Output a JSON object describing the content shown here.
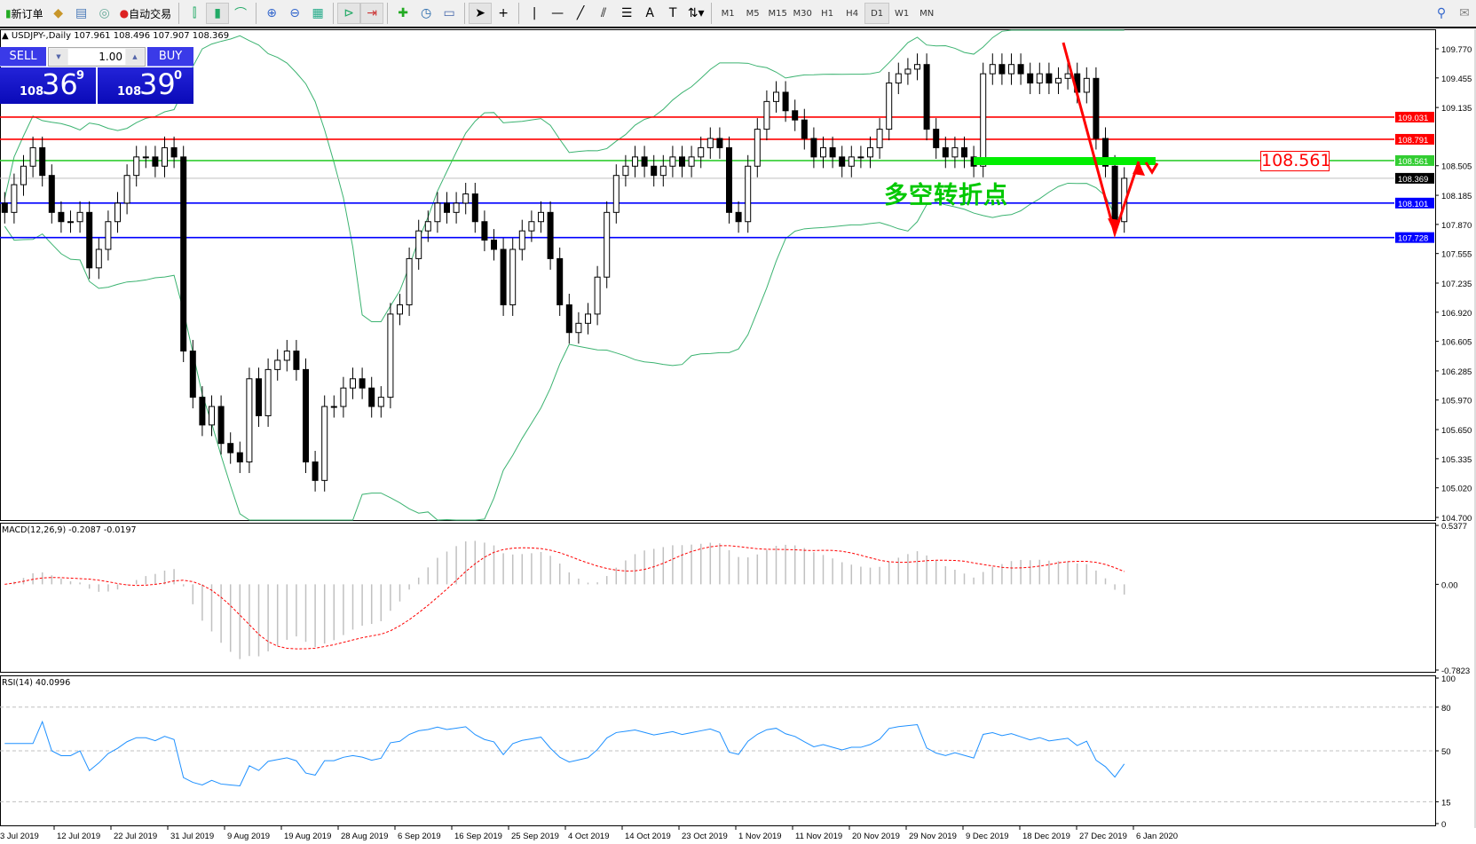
{
  "toolbar": {
    "new_order": "新订单",
    "auto_trading": "自动交易",
    "timeframes": [
      "M1",
      "M5",
      "M15",
      "M30",
      "H1",
      "H4",
      "D1",
      "W1",
      "MN"
    ],
    "active_timeframe": "D1"
  },
  "chart": {
    "title": "USDJPY-,Daily  107.961 108.496 107.907 108.369",
    "annotation": "多空转折点",
    "level_box": "108.561",
    "price_ticks": [
      "109.770",
      "109.455",
      "109.135",
      "108.505",
      "108.185",
      "107.870",
      "107.555",
      "107.235",
      "106.920",
      "106.605",
      "106.285",
      "105.970",
      "105.650",
      "105.335",
      "105.020",
      "104.700"
    ],
    "levels": [
      {
        "label": "109.031",
        "value": 109.031,
        "color": "#ff0000"
      },
      {
        "label": "108.791",
        "value": 108.791,
        "color": "#ff0000"
      },
      {
        "label": "108.561",
        "value": 108.561,
        "color": "#32cd32"
      },
      {
        "label": "108.369",
        "value": 108.369,
        "color": "#000000"
      },
      {
        "label": "108.101",
        "value": 108.101,
        "color": "#0000ff"
      },
      {
        "label": "107.728",
        "value": 107.728,
        "color": "#0000ff"
      }
    ],
    "dates": [
      "3 Jul 2019",
      "12 Jul 2019",
      "22 Jul 2019",
      "31 Jul 2019",
      "9 Aug 2019",
      "19 Aug 2019",
      "28 Aug 2019",
      "6 Sep 2019",
      "16 Sep 2019",
      "25 Sep 2019",
      "4 Oct 2019",
      "14 Oct 2019",
      "23 Oct 2019",
      "1 Nov 2019",
      "11 Nov 2019",
      "20 Nov 2019",
      "29 Nov 2019",
      "9 Dec 2019",
      "18 Dec 2019",
      "27 Dec 2019",
      "6 Jan 2020"
    ]
  },
  "one_click": {
    "sell": "SELL",
    "buy": "BUY",
    "lot": "1.00",
    "sell_prefix": "108",
    "sell_big": "36",
    "sell_pip": "9",
    "buy_prefix": "108",
    "buy_big": "39",
    "buy_pip": "0"
  },
  "macd": {
    "title": "MACD(12,26,9) -0.2087 -0.0197",
    "ticks": [
      "0.5377",
      "0.00",
      "-0.7823"
    ]
  },
  "rsi": {
    "title": "RSI(14) 40.0996",
    "ticks": [
      "100",
      "80",
      "50",
      "15",
      "0"
    ]
  },
  "chart_data": {
    "type": "candlestick",
    "symbol": "USDJPY",
    "ylim": [
      104.7,
      109.77
    ],
    "closes": [
      108.0,
      108.3,
      108.5,
      108.7,
      108.4,
      108.0,
      107.9,
      107.9,
      108.0,
      107.4,
      107.6,
      107.9,
      108.1,
      108.4,
      108.6,
      108.6,
      108.5,
      108.7,
      108.6,
      106.5,
      106.0,
      105.7,
      105.9,
      105.5,
      105.4,
      105.3,
      106.2,
      105.8,
      106.3,
      106.4,
      106.5,
      106.3,
      105.3,
      105.1,
      105.9,
      105.9,
      106.1,
      106.2,
      106.1,
      105.9,
      106.0,
      106.9,
      107.0,
      107.5,
      107.8,
      107.9,
      108.1,
      108.0,
      108.1,
      108.2,
      107.9,
      107.7,
      107.6,
      107.0,
      107.6,
      107.8,
      107.9,
      108.0,
      107.5,
      107.0,
      106.7,
      106.8,
      106.9,
      107.3,
      108.0,
      108.4,
      108.5,
      108.6,
      108.5,
      108.4,
      108.5,
      108.6,
      108.5,
      108.6,
      108.7,
      108.8,
      108.7,
      108.0,
      107.9,
      108.5,
      108.9,
      109.2,
      109.3,
      109.1,
      109.0,
      108.8,
      108.6,
      108.7,
      108.6,
      108.5,
      108.6,
      108.6,
      108.7,
      108.9,
      109.4,
      109.5,
      109.55,
      109.6,
      108.9,
      108.7,
      108.6,
      108.7,
      108.6,
      108.5,
      109.5,
      109.6,
      109.5,
      109.6,
      109.5,
      109.4,
      109.5,
      109.4,
      109.45,
      109.5,
      109.3,
      109.45,
      108.8,
      108.5,
      107.9,
      108.369
    ],
    "colors": {
      "bollinger": "#3cb371",
      "macd_hist": "#c0c0c0",
      "macd_signal": "#ff0000",
      "rsi": "#1e90ff"
    }
  }
}
